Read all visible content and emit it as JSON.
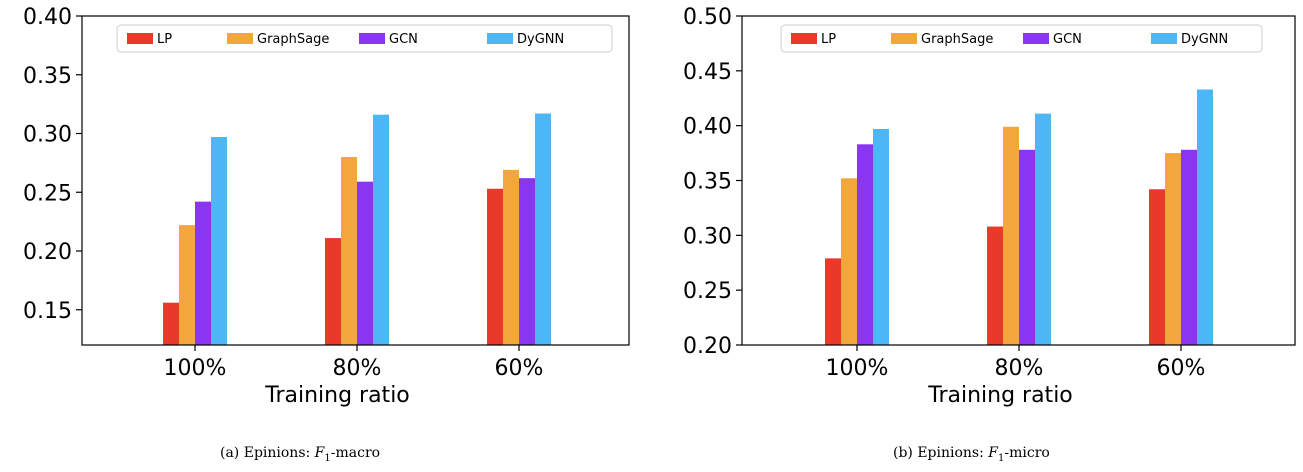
{
  "colors": {
    "LP": "#e8392a",
    "GraphSage": "#f2a63b",
    "GCN": "#8a36f0",
    "DyGNN": "#4db7f5"
  },
  "chart_data": [
    {
      "type": "bar",
      "title": "",
      "xlabel": "Training ratio",
      "ylabel": "",
      "categories": [
        "100%",
        "80%",
        "60%"
      ],
      "ylim": [
        0.12,
        0.4
      ],
      "yticks": [
        "0.15",
        "0.20",
        "0.25",
        "0.30",
        "0.35",
        "0.40"
      ],
      "legend_position": "top",
      "series": [
        {
          "name": "LP",
          "values": [
            0.156,
            0.211,
            0.253
          ]
        },
        {
          "name": "GraphSage",
          "values": [
            0.222,
            0.28,
            0.269
          ]
        },
        {
          "name": "GCN",
          "values": [
            0.242,
            0.259,
            0.262
          ]
        },
        {
          "name": "DyGNN",
          "values": [
            0.297,
            0.316,
            0.317
          ]
        }
      ],
      "caption": {
        "prefix": "(a)  Epinions: ",
        "italic": "F",
        "sub": "1",
        "suffix": "-macro"
      }
    },
    {
      "type": "bar",
      "title": "",
      "xlabel": "Training ratio",
      "ylabel": "",
      "categories": [
        "100%",
        "80%",
        "60%"
      ],
      "ylim": [
        0.2,
        0.5
      ],
      "yticks": [
        "0.20",
        "0.25",
        "0.30",
        "0.35",
        "0.40",
        "0.45",
        "0.50"
      ],
      "legend_position": "top",
      "series": [
        {
          "name": "LP",
          "values": [
            0.279,
            0.308,
            0.342
          ]
        },
        {
          "name": "GraphSage",
          "values": [
            0.352,
            0.399,
            0.375
          ]
        },
        {
          "name": "GCN",
          "values": [
            0.383,
            0.378,
            0.378
          ]
        },
        {
          "name": "DyGNN",
          "values": [
            0.397,
            0.411,
            0.433
          ]
        }
      ],
      "caption": {
        "prefix": "(b)  Epinions: ",
        "italic": "F",
        "sub": "1",
        "suffix": "-micro"
      }
    }
  ]
}
